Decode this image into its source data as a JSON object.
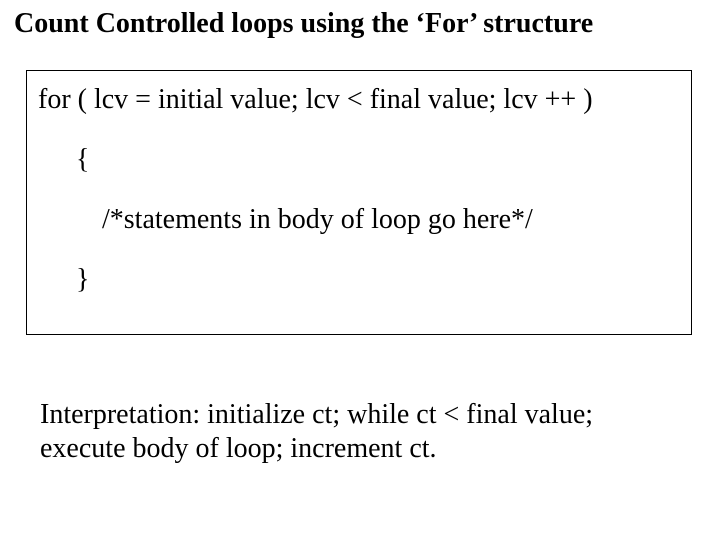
{
  "title": "Count Controlled loops using the ‘For’ structure",
  "code": {
    "line1": "for ( lcv = initial value; lcv < final value; lcv ++ )",
    "line2": "{",
    "line3": "/*statements in body of loop go here*/",
    "line4": "}"
  },
  "interpretation": "Interpretation:  initialize ct; while ct < final value; execute body of loop; increment ct.",
  "style": {
    "background": "#ffffff",
    "text_color": "#000000",
    "font_family": "Times New Roman",
    "title_fontsize": 28,
    "title_fontweight": "bold",
    "body_fontsize": 28,
    "box_border_color": "#000000",
    "box_border_width": 1
  }
}
